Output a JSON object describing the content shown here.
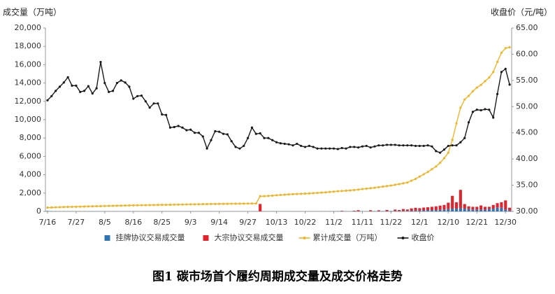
{
  "chart_data": {
    "type": "combo",
    "title": "图1 碳市场首个履约周期成交量及成交价格走势",
    "y_label": "成交量（万吨）",
    "y2_label": "收盘价（元/吨）",
    "legend": "bottom",
    "grid": false,
    "categories": [
      "7/16",
      null,
      null,
      null,
      null,
      null,
      null,
      "7/27",
      null,
      null,
      null,
      null,
      null,
      null,
      "8/5",
      null,
      null,
      null,
      null,
      null,
      null,
      "8/16",
      null,
      null,
      null,
      null,
      null,
      null,
      "8/25",
      null,
      null,
      null,
      null,
      null,
      null,
      "9/3",
      null,
      null,
      null,
      null,
      null,
      null,
      "9/14",
      null,
      null,
      null,
      null,
      null,
      null,
      "9/27",
      null,
      null,
      null,
      null,
      null,
      null,
      "10/13",
      null,
      null,
      null,
      null,
      null,
      null,
      "10/22",
      null,
      null,
      null,
      null,
      null,
      null,
      "11/2",
      null,
      null,
      null,
      null,
      null,
      null,
      "11/11",
      null,
      null,
      null,
      null,
      null,
      null,
      "11/22",
      null,
      null,
      null,
      null,
      null,
      null,
      "12/1",
      null,
      null,
      null,
      null,
      null,
      null,
      "12/10",
      null,
      null,
      null,
      null,
      null,
      null,
      "12/21",
      null,
      null,
      null,
      null,
      null,
      null,
      "12/30",
      null
    ],
    "ylim": [
      0,
      20000
    ],
    "yticks": [
      0,
      {
        "value": 2000,
        "label": "2,000"
      },
      {
        "value": 4000,
        "label": "4,000"
      },
      {
        "value": 6000,
        "label": "6,000"
      },
      {
        "value": 8000,
        "label": "8,000"
      },
      {
        "value": 10000,
        "label": "10,000"
      },
      {
        "value": 12000,
        "label": "12,000"
      },
      {
        "value": 14000,
        "label": "14,000"
      },
      {
        "value": 16000,
        "label": "16,000"
      },
      {
        "value": 18000,
        "label": "18,000"
      },
      {
        "value": 20000,
        "label": "20,000"
      }
    ],
    "y2lim": [
      30,
      65
    ],
    "y2ticks": [
      {
        "value": 30,
        "label": "30.00"
      },
      {
        "value": 35,
        "label": "35.00"
      },
      {
        "value": 40,
        "label": "40.00"
      },
      {
        "value": 45,
        "label": "45.00"
      },
      {
        "value": 50,
        "label": "50.00"
      },
      {
        "value": 55,
        "label": "55.00"
      },
      {
        "value": 60,
        "label": "60.00"
      },
      {
        "value": 65,
        "label": "65.00"
      }
    ],
    "series": [
      {
        "name": "挂牌协议交易成交量",
        "type": "bar",
        "color": "#2e75b6",
        "values": [
          50,
          20,
          15,
          15,
          15,
          15,
          10,
          10,
          10,
          15,
          10,
          10,
          10,
          10,
          15,
          10,
          10,
          10,
          10,
          10,
          10,
          10,
          10,
          5,
          5,
          10,
          10,
          5,
          10,
          5,
          10,
          10,
          5,
          5,
          10,
          10,
          5,
          5,
          10,
          10,
          10,
          5,
          5,
          5,
          5,
          5,
          5,
          5,
          5,
          5,
          5,
          5,
          10,
          10,
          10,
          20,
          20,
          15,
          15,
          15,
          15,
          10,
          10,
          10,
          15,
          15,
          15,
          15,
          15,
          20,
          25,
          25,
          20,
          20,
          20,
          25,
          30,
          30,
          25,
          30,
          35,
          40,
          40,
          40,
          50,
          50,
          50,
          60,
          60,
          80,
          90,
          100,
          120,
          150,
          150,
          150,
          180,
          200,
          250,
          300,
          300,
          350,
          300,
          250,
          200,
          200,
          200,
          200,
          250,
          300,
          400,
          400,
          200,
          100
        ]
      },
      {
        "name": "大宗协议交易成交量",
        "type": "bar",
        "color": "#e3222b",
        "values": [
          0,
          0,
          0,
          0,
          0,
          0,
          0,
          0,
          0,
          0,
          0,
          0,
          0,
          0,
          0,
          0,
          0,
          0,
          0,
          0,
          0,
          0,
          0,
          0,
          0,
          0,
          0,
          0,
          0,
          0,
          0,
          0,
          0,
          0,
          0,
          0,
          0,
          0,
          0,
          0,
          0,
          0,
          0,
          0,
          0,
          0,
          0,
          0,
          0,
          0,
          0,
          0,
          800,
          0,
          0,
          0,
          0,
          0,
          0,
          0,
          0,
          0,
          0,
          0,
          0,
          0,
          0,
          0,
          0,
          0,
          0,
          0,
          50,
          0,
          0,
          50,
          100,
          0,
          0,
          100,
          0,
          80,
          0,
          120,
          0,
          150,
          100,
          200,
          150,
          250,
          300,
          250,
          300,
          300,
          350,
          400,
          450,
          500,
          700,
          1400,
          700,
          2000,
          500,
          300,
          300,
          300,
          450,
          300,
          250,
          400,
          500,
          600,
          1000,
          300
        ]
      },
      {
        "name": "累计成交量（万吨）",
        "type": "line",
        "color": "#f0b526",
        "values": [
          410,
          430,
          445,
          460,
          475,
          490,
          500,
          510,
          520,
          535,
          545,
          555,
          565,
          575,
          590,
          600,
          610,
          620,
          630,
          640,
          650,
          660,
          670,
          675,
          680,
          690,
          700,
          705,
          715,
          720,
          730,
          740,
          745,
          750,
          760,
          770,
          775,
          780,
          790,
          800,
          810,
          815,
          820,
          825,
          830,
          835,
          840,
          845,
          850,
          855,
          860,
          865,
          1650,
          1660,
          1690,
          1720,
          1760,
          1790,
          1820,
          1850,
          1880,
          1900,
          1920,
          1940,
          1960,
          1990,
          2020,
          2050,
          2080,
          2120,
          2160,
          2200,
          2230,
          2260,
          2290,
          2330,
          2380,
          2440,
          2480,
          2530,
          2580,
          2640,
          2700,
          2760,
          2820,
          2900,
          2980,
          3060,
          3150,
          3350,
          3550,
          3800,
          4050,
          4300,
          4600,
          4900,
          5300,
          5800,
          6400,
          7800,
          9600,
          11300,
          12200,
          12600,
          13100,
          13500,
          13800,
          14200,
          14600,
          15200,
          16300,
          17300,
          17800,
          17900
        ]
      },
      {
        "name": "收盘价",
        "type": "line",
        "axis": "y2",
        "color": "#1a1a1a",
        "values": [
          51.2,
          52.0,
          53.0,
          53.8,
          54.6,
          55.6,
          54.0,
          54.0,
          52.8,
          53.0,
          53.9,
          52.5,
          53.5,
          58.5,
          54.5,
          52.8,
          53.0,
          54.5,
          55.0,
          54.6,
          53.8,
          51.5,
          52.0,
          52.1,
          51.0,
          49.8,
          50.6,
          50.6,
          48.5,
          48.4,
          46.0,
          46.1,
          46.3,
          46.0,
          45.5,
          45.6,
          45.0,
          45.0,
          44.3,
          42.0,
          43.6,
          45.3,
          45.2,
          44.8,
          44.7,
          43.4,
          42.3,
          42.0,
          42.5,
          44.0,
          46.0,
          44.8,
          44.9,
          44.0,
          44.0,
          43.6,
          43.2,
          43.0,
          42.9,
          42.8,
          42.6,
          42.9,
          42.5,
          42.3,
          42.5,
          42.3,
          42.0,
          42.0,
          42.0,
          42.0,
          42.0,
          41.9,
          42.1,
          42.0,
          42.3,
          42.3,
          42.2,
          42.4,
          42.5,
          42.2,
          42.4,
          42.6,
          42.6,
          42.7,
          42.7,
          42.7,
          42.6,
          42.6,
          42.6,
          42.6,
          42.5,
          42.5,
          42.5,
          42.6,
          42.4,
          41.5,
          41.2,
          41.8,
          42.5,
          42.6,
          42.6,
          43.2,
          44.0,
          47.0,
          49.0,
          49.4,
          49.3,
          49.5,
          49.4,
          47.9,
          52.4,
          56.6,
          57.2,
          54.2
        ]
      }
    ]
  }
}
